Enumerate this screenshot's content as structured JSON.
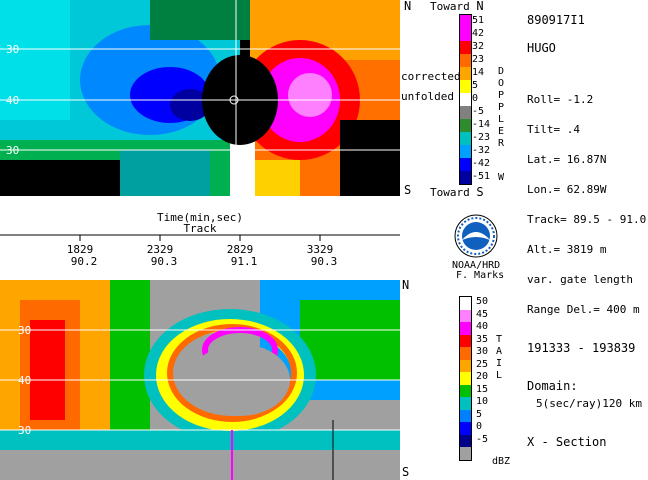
{
  "header": {
    "id": "890917I1",
    "storm": "HUGO"
  },
  "info": {
    "roll": "Roll=  -1.2",
    "tilt": "Tilt=    .4",
    "lat": "Lat.=    16.87N",
    "lon": "Lon.=    62.89W",
    "track": "Track= 89.5 -  91.0",
    "alt": "Alt.= 3819 m",
    "gate": "var. gate length",
    "range": "Range Del.=   400 m",
    "time_range": "191333 - 193839",
    "domain_label": "Domain:",
    "domain_value": "5(sec/ray)120 km",
    "section": "X - Section"
  },
  "doppler_panel": {
    "north": "N",
    "south": "S",
    "toward_top": "Toward",
    "toward_top_letter": "N",
    "toward_bottom": "Toward",
    "toward_bottom_letter": "S",
    "corrected": "corrected",
    "unfolded": "unfolded",
    "lat_labels": [
      "30",
      "40",
      "30"
    ],
    "scale_letters": [
      "D",
      "O",
      "P",
      "P",
      "L",
      "E",
      "R"
    ],
    "scale_end": "W",
    "scale_values": [
      "51",
      "42",
      "32",
      "23",
      "14",
      "5",
      "0",
      "-5",
      "-14",
      "-23",
      "-32",
      "-42",
      "-51"
    ],
    "scale_colors": [
      "#ff00ff",
      "#ff00ff",
      "#ff0000",
      "#ff6a00",
      "#ffa500",
      "#ffff00",
      "#ffffff",
      "#808080",
      "#2e8b2e",
      "#00c0c0",
      "#00a0ff",
      "#0000ff",
      "#0000a0"
    ]
  },
  "time_axis": {
    "title": "Time(min,sec)",
    "subtitle": "Track",
    "ticks": [
      {
        "time": "1829",
        "track": "90.2"
      },
      {
        "time": "2329",
        "track": "90.3"
      },
      {
        "time": "2829",
        "track": "91.1"
      },
      {
        "time": "3329",
        "track": "90.3"
      }
    ]
  },
  "logo": {
    "name": "NOAA",
    "org": "NOAA/HRD",
    "author": "F. Marks"
  },
  "refl_panel": {
    "north": "N",
    "south": "S",
    "lat_labels": [
      "30",
      "40",
      "30"
    ],
    "scale_letters": [
      "T",
      "A",
      "I",
      "L"
    ],
    "unit": "dBZ",
    "scale_values": [
      "50",
      "45",
      "40",
      "35",
      "30",
      "25",
      "20",
      "15",
      "10",
      "5",
      "0",
      "-5"
    ],
    "scale_colors": [
      "#ffffff",
      "#ff80ff",
      "#ff00ff",
      "#ff0000",
      "#ff6a00",
      "#ffa500",
      "#ffff00",
      "#00c000",
      "#00c0c0",
      "#0080ff",
      "#0000ff",
      "#00008b",
      "#a0a0a0"
    ]
  }
}
